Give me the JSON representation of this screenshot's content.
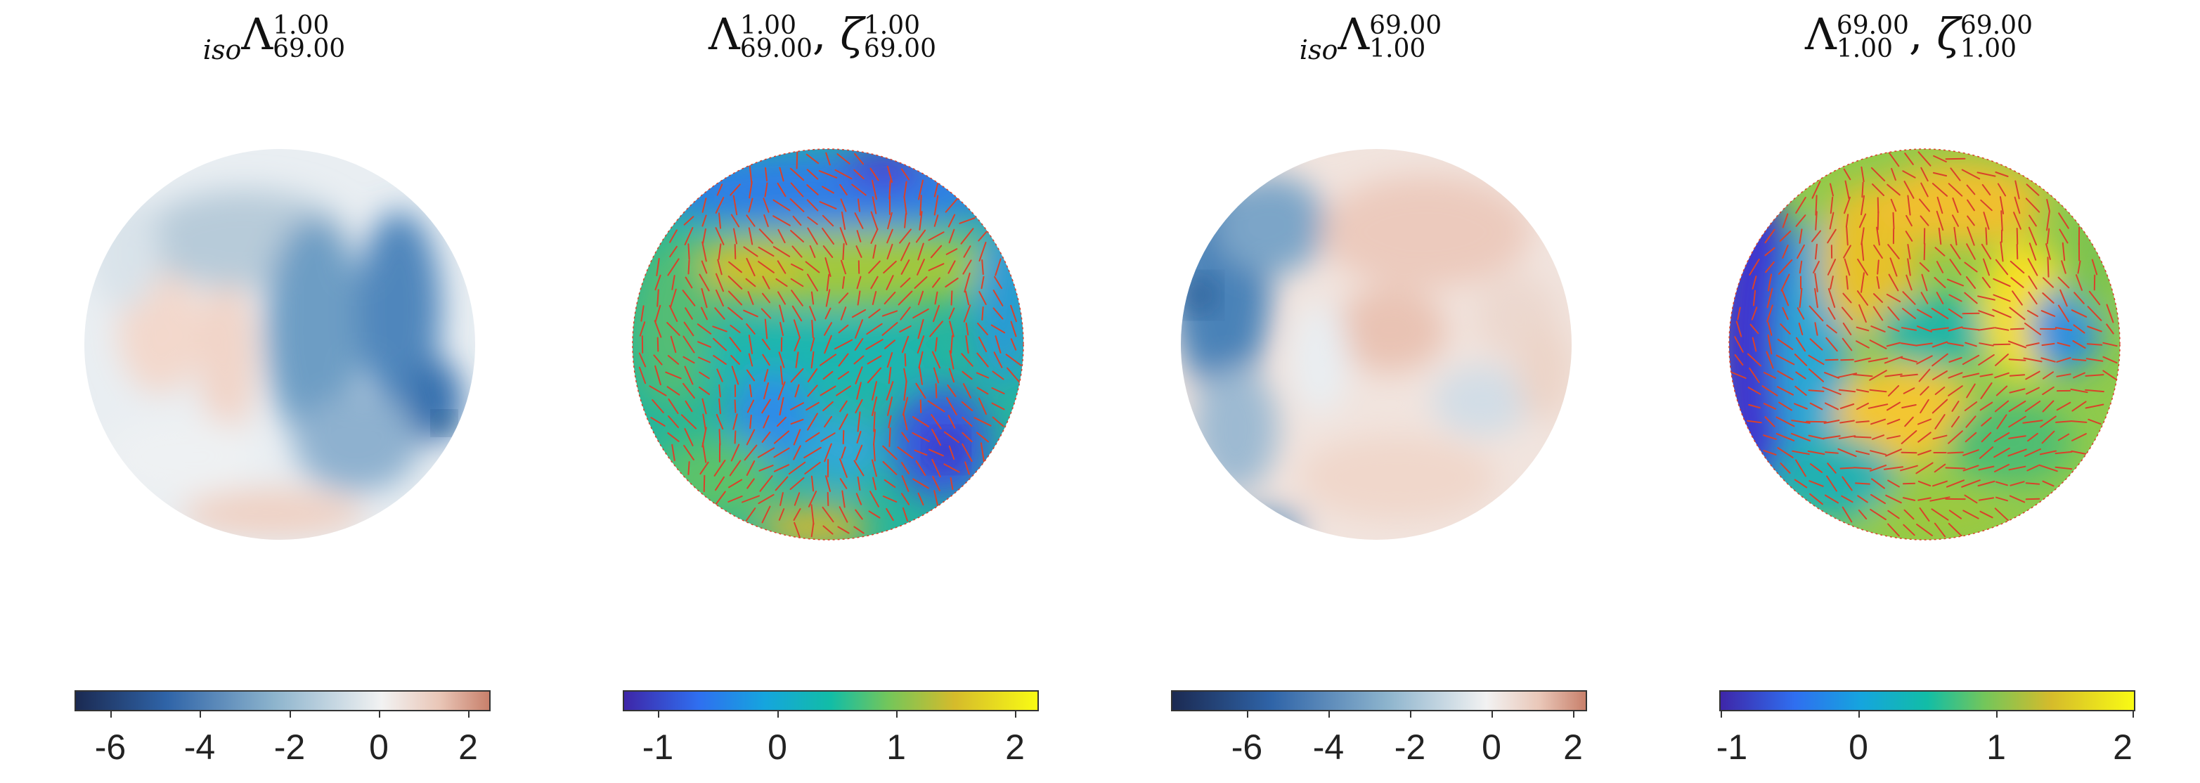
{
  "panels": [
    {
      "title": {
        "pre": "iso",
        "base": "Λ",
        "sup": "1.00",
        "sub": "69.00"
      },
      "colorbar": {
        "type": "diverging",
        "ticks": [
          "-6",
          "-4",
          "-2",
          "0",
          "2"
        ],
        "tick_values": [
          -6,
          -4,
          -2,
          0,
          2
        ],
        "range": [
          -7.0,
          2.3
        ]
      },
      "colors": {
        "low": "#1b2a52",
        "mid": "#f2f2f2",
        "high": "#c8806b"
      }
    },
    {
      "title": {
        "base": "Λ",
        "sup": "1.00",
        "sub": "69.00",
        "base2": "ζ",
        "sup2": "1.00",
        "sub2": "69.00"
      },
      "colorbar": {
        "type": "parula",
        "ticks": [
          "-1",
          "0",
          "1",
          "2"
        ],
        "tick_values": [
          -1,
          0,
          1,
          2
        ],
        "range": [
          -1.3,
          2.2
        ]
      },
      "colors": {
        "vector": "#d9412a"
      }
    },
    {
      "title": {
        "pre": "iso",
        "base": "Λ",
        "sup": "69.00",
        "sub": "1.00"
      },
      "colorbar": {
        "type": "diverging",
        "ticks": [
          "-6",
          "-4",
          "-2",
          "0",
          "2"
        ],
        "tick_values": [
          -6,
          -4,
          -2,
          0,
          2
        ],
        "range": [
          -7.8,
          2.4
        ]
      },
      "colors": {
        "low": "#1b2a52",
        "mid": "#f2f2f2",
        "high": "#c8806b"
      }
    },
    {
      "title": {
        "base": "Λ",
        "sup": "69.00",
        "sub": "1.00",
        "base2": "ζ",
        "sup2": "69.00",
        "sub2": "1.00"
      },
      "colorbar": {
        "type": "parula",
        "ticks": [
          "-1",
          "0",
          "1",
          "2"
        ],
        "tick_values": [
          -1,
          0,
          1,
          2
        ],
        "range": [
          -1.0,
          2.0
        ]
      },
      "colors": {
        "vector": "#d9412a"
      }
    }
  ]
}
